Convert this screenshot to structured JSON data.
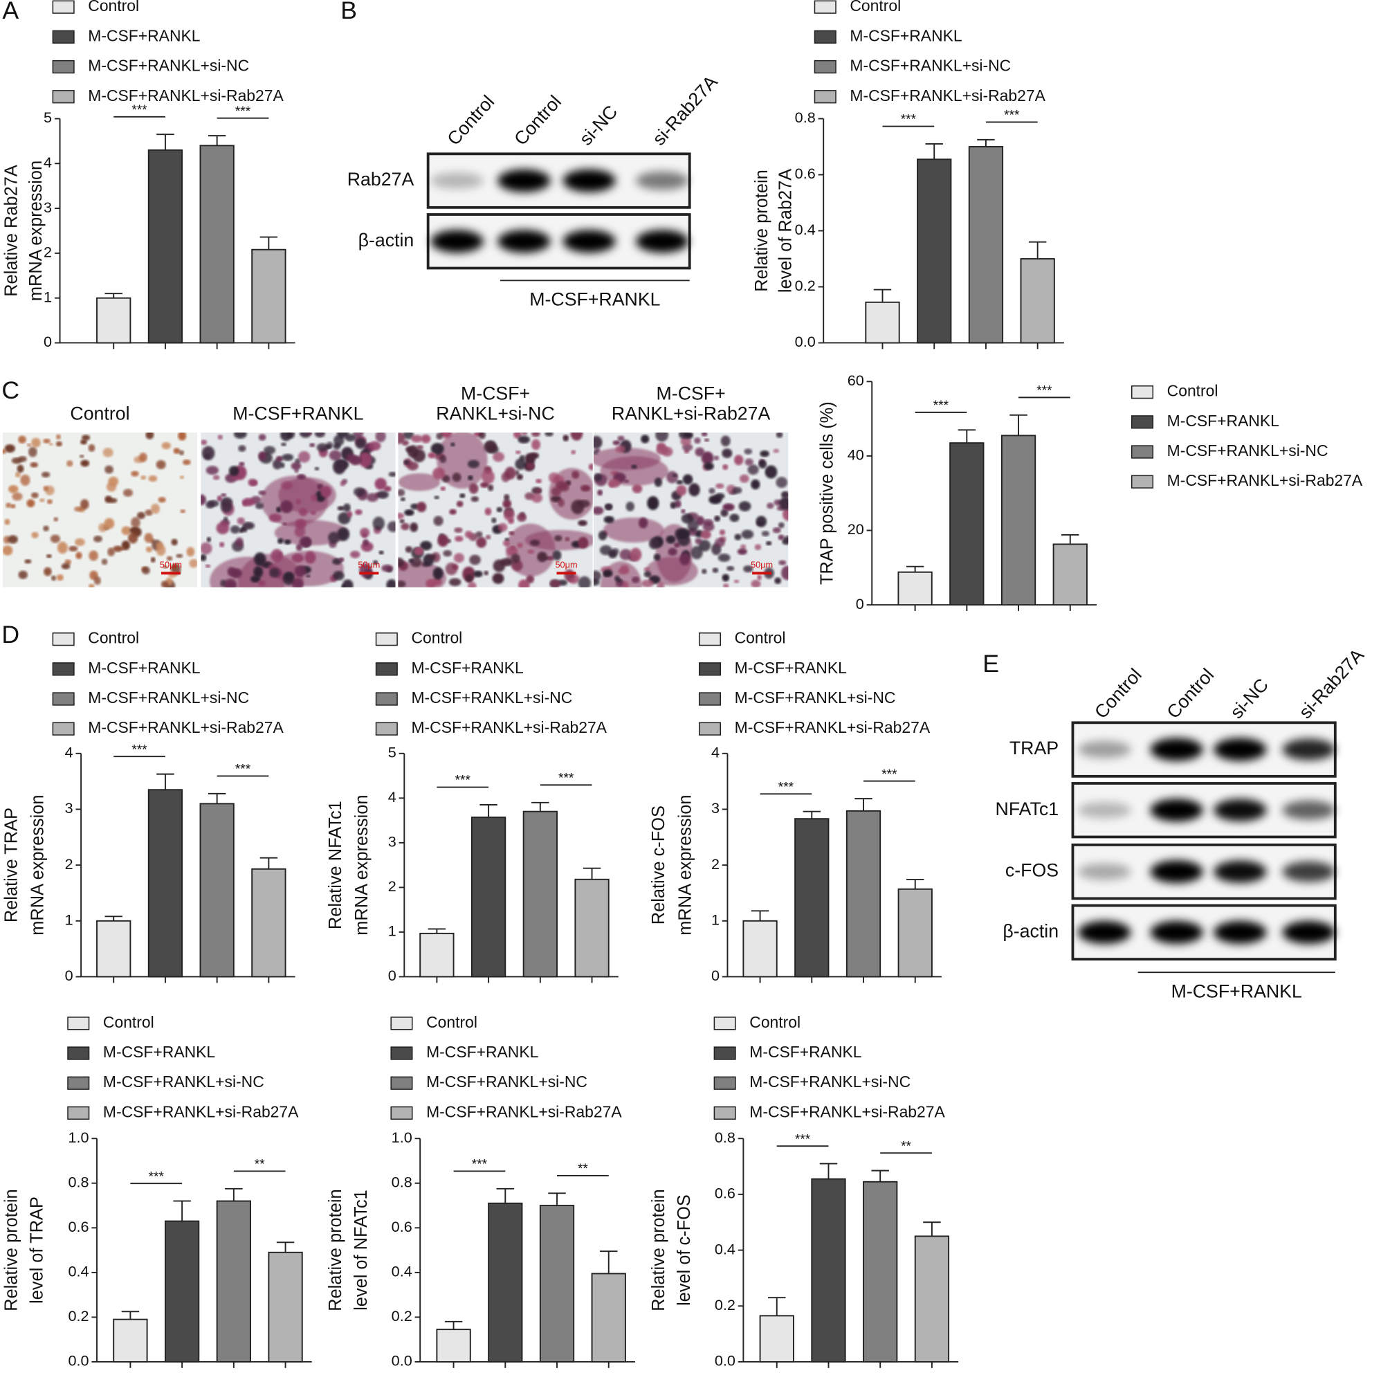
{
  "panel_labels": [
    "A",
    "B",
    "C",
    "D",
    "E"
  ],
  "blot_b": {
    "columns": [
      "Control",
      "Control",
      "si-NC",
      "si-Rab27A"
    ],
    "rows": [
      "Rab27A",
      "β-actin"
    ],
    "group": "M-CSF+RANKL"
  },
  "images": {
    "titles": [
      [
        "Control"
      ],
      [
        "M-CSF+RANKL"
      ],
      [
        "M-CSF+",
        "RANKL+si-NC"
      ],
      [
        "M-CSF+",
        "RANKL+si-Rab27A"
      ]
    ],
    "scale_bar": "50μm"
  },
  "blot_e": {
    "columns": [
      "Control",
      "Control",
      "si-NC",
      "si-Rab27A"
    ],
    "rows": [
      "TRAP",
      "NFATc1",
      "c-FOS",
      "β-actin"
    ],
    "group": "M-CSF+RANKL"
  },
  "chart_data": [
    {
      "type": "bar",
      "ylabel": [
        "Relative Rab27A",
        "mRNA expression"
      ],
      "ylim": [
        0,
        5
      ],
      "yticks": [
        0,
        1,
        2,
        3,
        4,
        5
      ],
      "series": [
        {
          "name": "Control",
          "color": "#e6e6e6",
          "values": [
            1.0
          ],
          "errors": [
            0.1
          ]
        },
        {
          "name": "M-CSF+RANKL",
          "color": "#4a4a4a",
          "values": [
            4.3
          ],
          "errors": [
            0.35
          ]
        },
        {
          "name": "M-CSF+RANKL+si-NC",
          "color": "#808080",
          "values": [
            4.4
          ],
          "errors": [
            0.22
          ]
        },
        {
          "name": "M-CSF+RANKL+si-Rab27A",
          "color": "#b3b3b3",
          "values": [
            2.08
          ],
          "errors": [
            0.28
          ]
        }
      ],
      "annotations": [
        {
          "text": "***",
          "between": [
            0,
            1
          ]
        },
        {
          "text": "***",
          "between": [
            2,
            3
          ]
        }
      ]
    },
    {
      "type": "bar",
      "ylabel": [
        "Relative protein",
        "level of Rab27A"
      ],
      "ylim": [
        0,
        0.8
      ],
      "yticks": [
        {
          "value": 0,
          "label": "0.0"
        },
        0.2,
        0.4,
        0.6,
        0.8
      ],
      "series": [
        {
          "name": "Control",
          "color": "#e6e6e6",
          "values": [
            0.145
          ],
          "errors": [
            0.045
          ]
        },
        {
          "name": "M-CSF+RANKL",
          "color": "#4a4a4a",
          "values": [
            0.655
          ],
          "errors": [
            0.055
          ]
        },
        {
          "name": "M-CSF+RANKL+si-NC",
          "color": "#808080",
          "values": [
            0.7
          ],
          "errors": [
            0.025
          ]
        },
        {
          "name": "M-CSF+RANKL+si-Rab27A",
          "color": "#b3b3b3",
          "values": [
            0.3
          ],
          "errors": [
            0.06
          ]
        }
      ],
      "annotations": [
        {
          "text": "***",
          "between": [
            0,
            1
          ]
        },
        {
          "text": "***",
          "between": [
            2,
            3
          ]
        }
      ]
    },
    {
      "type": "bar",
      "ylabel": [
        "TRAP positive cells (%)"
      ],
      "ylim": [
        0,
        60
      ],
      "yticks": [
        0,
        20,
        40,
        60
      ],
      "series": [
        {
          "name": "Control",
          "color": "#e6e6e6",
          "values": [
            8.8
          ],
          "errors": [
            1.5
          ]
        },
        {
          "name": "M-CSF+RANKL",
          "color": "#4a4a4a",
          "values": [
            43.5
          ],
          "errors": [
            3.5
          ]
        },
        {
          "name": "M-CSF+RANKL+si-NC",
          "color": "#808080",
          "values": [
            45.5
          ],
          "errors": [
            5.5
          ]
        },
        {
          "name": "M-CSF+RANKL+si-Rab27A",
          "color": "#b3b3b3",
          "values": [
            16.3
          ],
          "errors": [
            2.5
          ]
        }
      ],
      "annotations": [
        {
          "text": "***",
          "between": [
            0,
            1
          ]
        },
        {
          "text": "***",
          "between": [
            2,
            3
          ]
        }
      ]
    },
    {
      "type": "bar",
      "ylabel": [
        "Relative TRAP",
        "mRNA expression"
      ],
      "ylim": [
        0,
        4
      ],
      "yticks": [
        0,
        1,
        2,
        3,
        4
      ],
      "series": [
        {
          "name": "Control",
          "color": "#e6e6e6",
          "values": [
            1.0
          ],
          "errors": [
            0.08
          ]
        },
        {
          "name": "M-CSF+RANKL",
          "color": "#4a4a4a",
          "values": [
            3.35
          ],
          "errors": [
            0.28
          ]
        },
        {
          "name": "M-CSF+RANKL+si-NC",
          "color": "#808080",
          "values": [
            3.1
          ],
          "errors": [
            0.18
          ]
        },
        {
          "name": "M-CSF+RANKL+si-Rab27A",
          "color": "#b3b3b3",
          "values": [
            1.93
          ],
          "errors": [
            0.2
          ]
        }
      ],
      "annotations": [
        {
          "text": "***",
          "between": [
            0,
            1
          ]
        },
        {
          "text": "***",
          "between": [
            2,
            3
          ]
        }
      ]
    },
    {
      "type": "bar",
      "ylabel": [
        "Relative NFATc1",
        "mRNA expression"
      ],
      "ylim": [
        0,
        5
      ],
      "yticks": [
        0,
        1,
        2,
        3,
        4,
        5
      ],
      "series": [
        {
          "name": "Control",
          "color": "#e6e6e6",
          "values": [
            0.97
          ],
          "errors": [
            0.1
          ]
        },
        {
          "name": "M-CSF+RANKL",
          "color": "#4a4a4a",
          "values": [
            3.57
          ],
          "errors": [
            0.28
          ]
        },
        {
          "name": "M-CSF+RANKL+si-NC",
          "color": "#808080",
          "values": [
            3.7
          ],
          "errors": [
            0.2
          ]
        },
        {
          "name": "M-CSF+RANKL+si-Rab27A",
          "color": "#b3b3b3",
          "values": [
            2.18
          ],
          "errors": [
            0.25
          ]
        }
      ],
      "annotations": [
        {
          "text": "***",
          "between": [
            0,
            1
          ]
        },
        {
          "text": "***",
          "between": [
            2,
            3
          ]
        }
      ]
    },
    {
      "type": "bar",
      "ylabel": [
        "Relative c-FOS",
        "mRNA expression"
      ],
      "ylim": [
        0,
        4
      ],
      "yticks": [
        0,
        1,
        2,
        3,
        4
      ],
      "series": [
        {
          "name": "Control",
          "color": "#e6e6e6",
          "values": [
            1.0
          ],
          "errors": [
            0.18
          ]
        },
        {
          "name": "M-CSF+RANKL",
          "color": "#4a4a4a",
          "values": [
            2.83
          ],
          "errors": [
            0.13
          ]
        },
        {
          "name": "M-CSF+RANKL+si-NC",
          "color": "#808080",
          "values": [
            2.97
          ],
          "errors": [
            0.22
          ]
        },
        {
          "name": "M-CSF+RANKL+si-Rab27A",
          "color": "#b3b3b3",
          "values": [
            1.57
          ],
          "errors": [
            0.17
          ]
        }
      ],
      "annotations": [
        {
          "text": "***",
          "between": [
            0,
            1
          ]
        },
        {
          "text": "***",
          "between": [
            2,
            3
          ]
        }
      ]
    },
    {
      "type": "bar",
      "ylabel": [
        "Relative protein",
        "level of TRAP"
      ],
      "ylim": [
        0,
        1.0
      ],
      "yticks": [
        {
          "value": 0,
          "label": "0.0"
        },
        0.2,
        0.4,
        0.6,
        0.8,
        {
          "value": 1.0,
          "label": "1.0"
        }
      ],
      "series": [
        {
          "name": "Control",
          "color": "#e6e6e6",
          "values": [
            0.19
          ],
          "errors": [
            0.035
          ]
        },
        {
          "name": "M-CSF+RANKL",
          "color": "#4a4a4a",
          "values": [
            0.63
          ],
          "errors": [
            0.09
          ]
        },
        {
          "name": "M-CSF+RANKL+si-NC",
          "color": "#808080",
          "values": [
            0.72
          ],
          "errors": [
            0.055
          ]
        },
        {
          "name": "M-CSF+RANKL+si-Rab27A",
          "color": "#b3b3b3",
          "values": [
            0.49
          ],
          "errors": [
            0.045
          ]
        }
      ],
      "annotations": [
        {
          "text": "***",
          "between": [
            0,
            1
          ]
        },
        {
          "text": "**",
          "between": [
            2,
            3
          ]
        }
      ]
    },
    {
      "type": "bar",
      "ylabel": [
        "Relative protein",
        "level of NFATc1"
      ],
      "ylim": [
        0,
        1.0
      ],
      "yticks": [
        {
          "value": 0,
          "label": "0.0"
        },
        0.2,
        0.4,
        0.6,
        0.8,
        {
          "value": 1.0,
          "label": "1.0"
        }
      ],
      "series": [
        {
          "name": "Control",
          "color": "#e6e6e6",
          "values": [
            0.145
          ],
          "errors": [
            0.035
          ]
        },
        {
          "name": "M-CSF+RANKL",
          "color": "#4a4a4a",
          "values": [
            0.71
          ],
          "errors": [
            0.065
          ]
        },
        {
          "name": "M-CSF+RANKL+si-NC",
          "color": "#808080",
          "values": [
            0.7
          ],
          "errors": [
            0.055
          ]
        },
        {
          "name": "M-CSF+RANKL+si-Rab27A",
          "color": "#b3b3b3",
          "values": [
            0.395
          ],
          "errors": [
            0.1
          ]
        }
      ],
      "annotations": [
        {
          "text": "***",
          "between": [
            0,
            1
          ]
        },
        {
          "text": "**",
          "between": [
            2,
            3
          ]
        }
      ]
    },
    {
      "type": "bar",
      "ylabel": [
        "Relative protein",
        "level of c-FOS"
      ],
      "ylim": [
        0,
        0.8
      ],
      "yticks": [
        {
          "value": 0,
          "label": "0.0"
        },
        0.2,
        0.4,
        0.6,
        0.8
      ],
      "series": [
        {
          "name": "Control",
          "color": "#e6e6e6",
          "values": [
            0.165
          ],
          "errors": [
            0.065
          ]
        },
        {
          "name": "M-CSF+RANKL",
          "color": "#4a4a4a",
          "values": [
            0.655
          ],
          "errors": [
            0.055
          ]
        },
        {
          "name": "M-CSF+RANKL+si-NC",
          "color": "#808080",
          "values": [
            0.645
          ],
          "errors": [
            0.04
          ]
        },
        {
          "name": "M-CSF+RANKL+si-Rab27A",
          "color": "#b3b3b3",
          "values": [
            0.45
          ],
          "errors": [
            0.05
          ]
        }
      ],
      "annotations": [
        {
          "text": "***",
          "between": [
            0,
            1
          ]
        },
        {
          "text": "**",
          "between": [
            2,
            3
          ]
        }
      ]
    }
  ]
}
